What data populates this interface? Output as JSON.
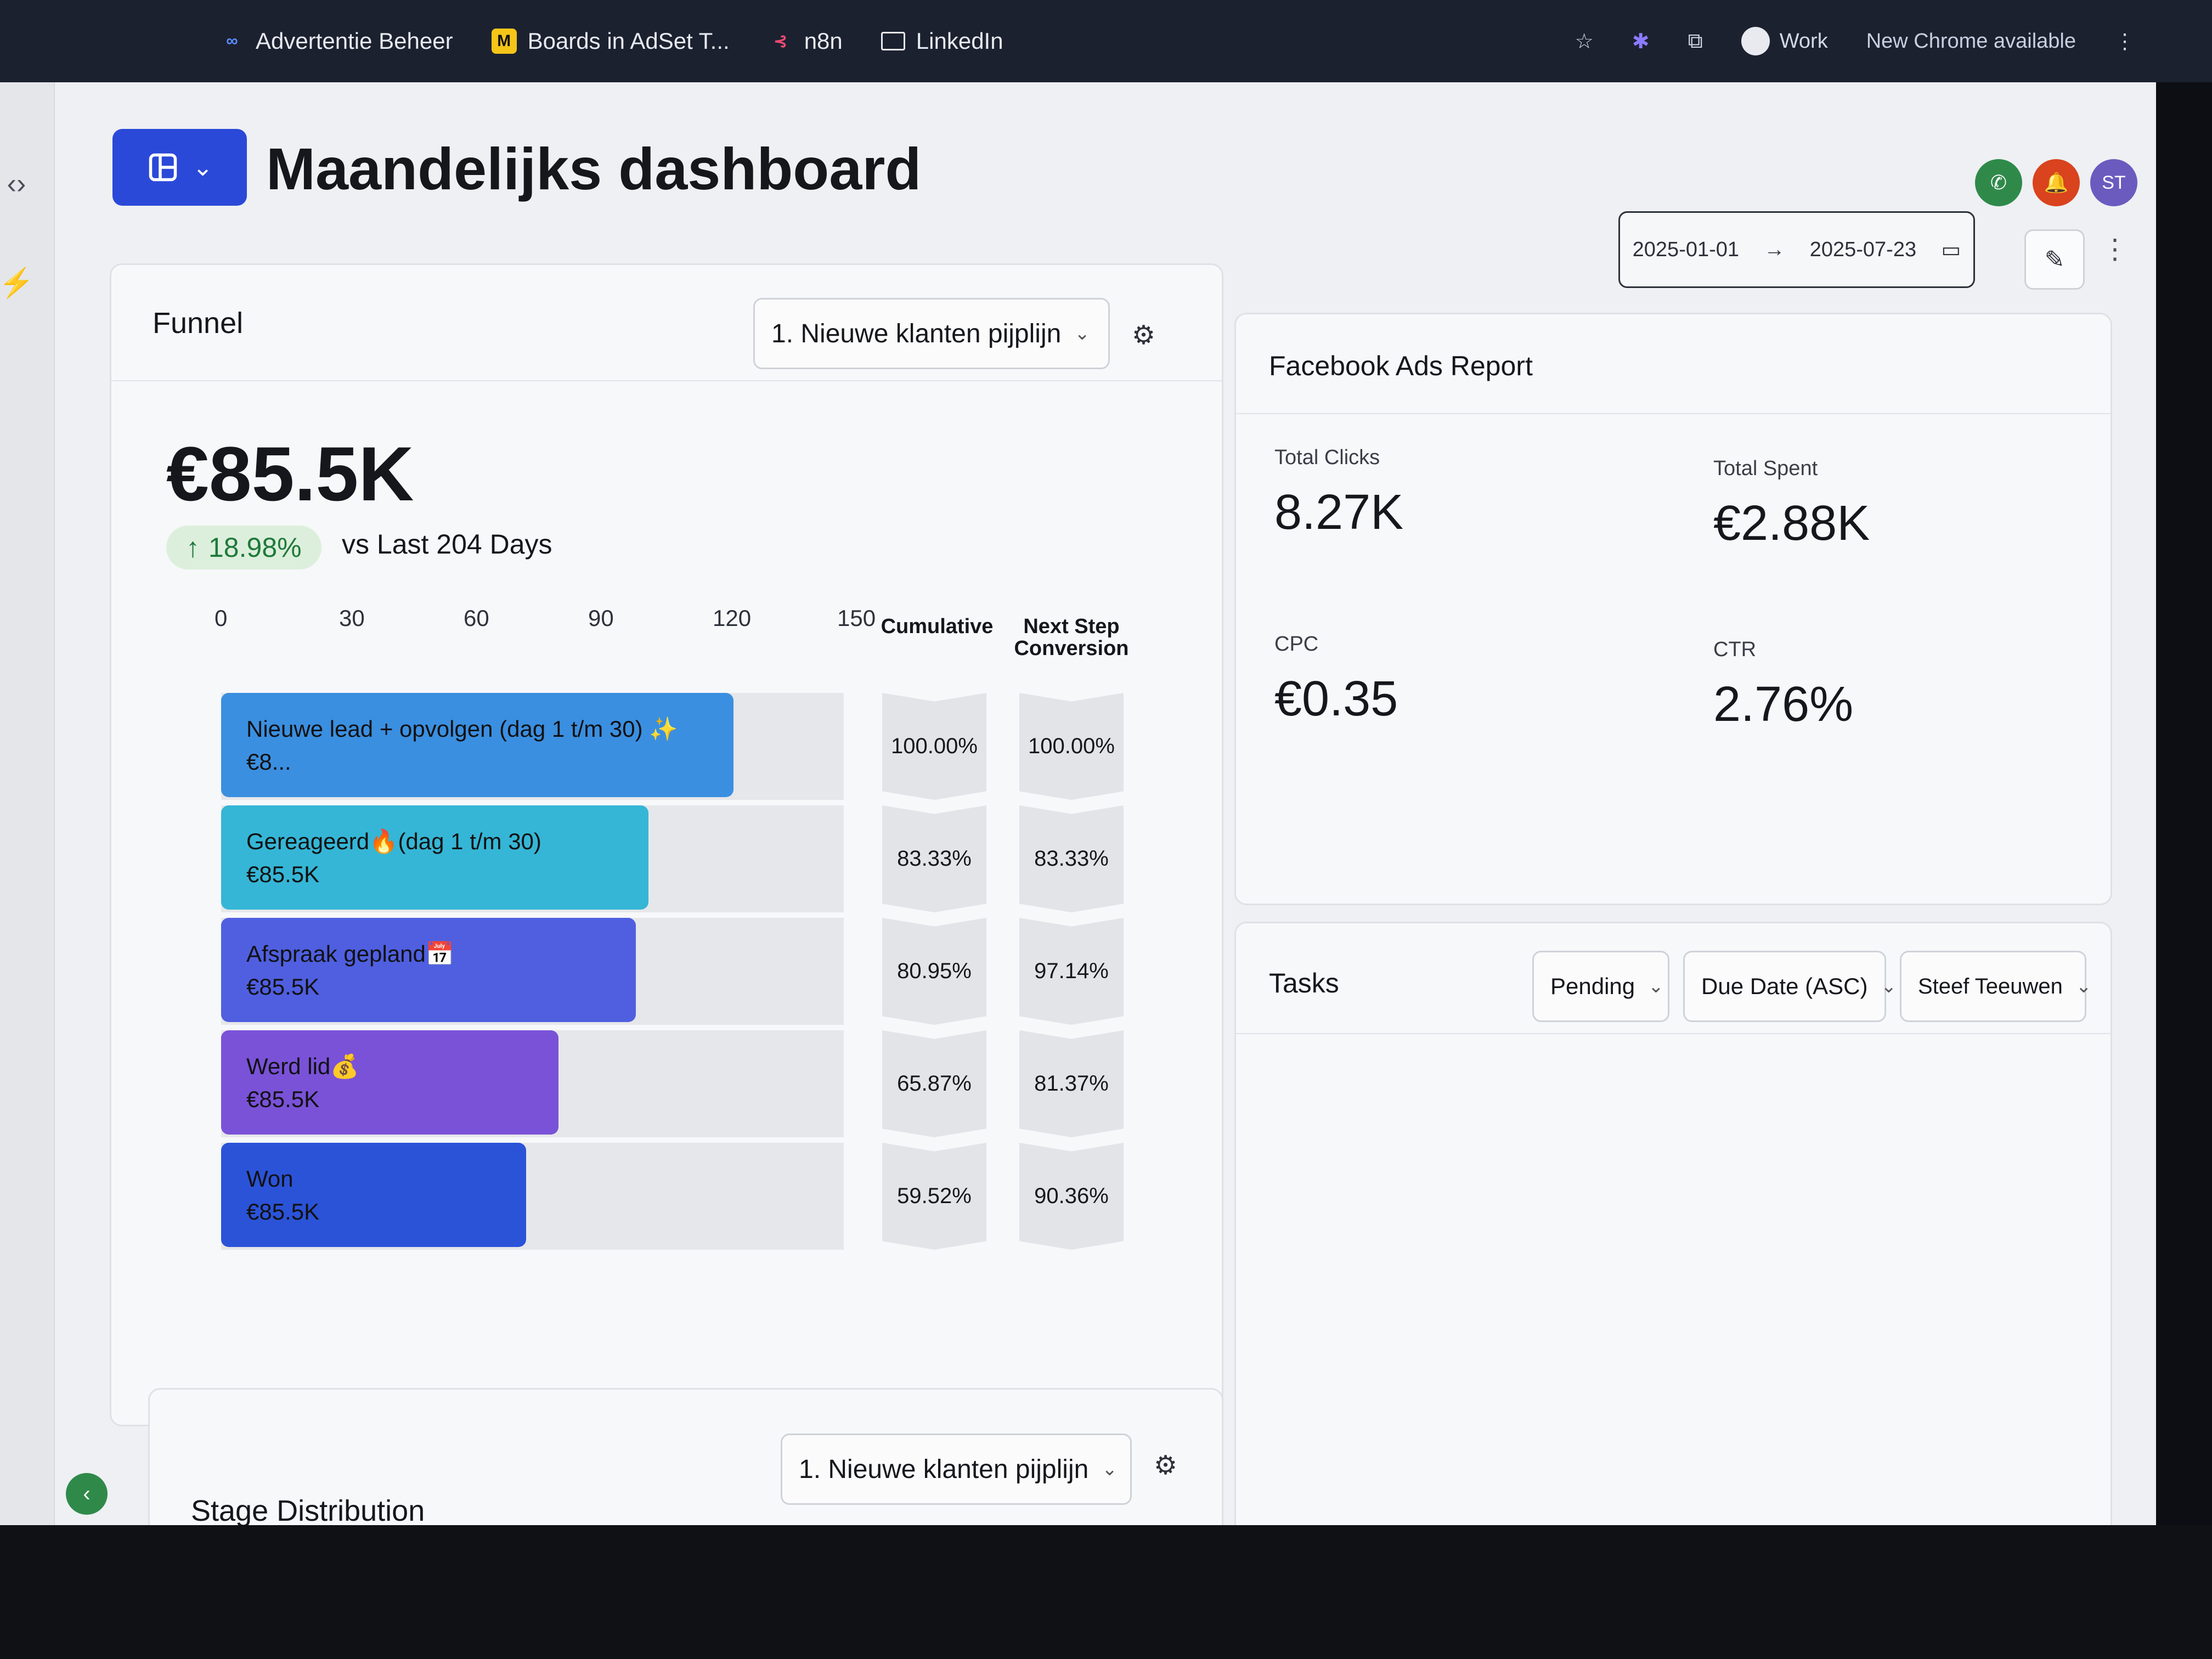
{
  "bookmarks": [
    {
      "label": "Advertentie Beheer",
      "icon": "meta-icon",
      "color": "#3b82f6"
    },
    {
      "label": "Boards in AdSet T...",
      "icon": "miro-icon",
      "color": "#f5c518"
    },
    {
      "label": "n8n",
      "icon": "n8n-icon",
      "color": "#ea4b71"
    },
    {
      "label": "LinkedIn",
      "icon": "folder-icon",
      "color": "#e8eaf0"
    }
  ],
  "browser": {
    "profile_label": "Work",
    "update_label": "New Chrome available"
  },
  "header": {
    "title": "Maandelijks dashboard",
    "date_start": "2025-01-01",
    "date_arrow": "→",
    "date_end": "2025-07-23",
    "avatar_initials": "ST"
  },
  "funnel": {
    "title": "Funnel",
    "pipeline_select": "1. Nieuwe klanten pijplijn",
    "total_value": "€85.5K",
    "change_pct": "18.98%",
    "change_label": "vs Last 204 Days",
    "axis_ticks": [
      "0",
      "30",
      "60",
      "90",
      "120",
      "150"
    ],
    "cumulative_header": "Cumulative",
    "next_step_header": "Next Step Conversion",
    "stages": [
      {
        "name": "Nieuwe lead + opvolgen (dag 1 t/m 30) ✨",
        "value": "€8...",
        "count": 126,
        "cumulative": "100.00%",
        "next_step": "100.00%",
        "color": "#3b8fe0"
      },
      {
        "name": "Gereageerd🔥(dag 1 t/m 30)",
        "value": "€85.5K",
        "count": 105,
        "cumulative": "83.33%",
        "next_step": "83.33%",
        "color": "#35b6d6"
      },
      {
        "name": "Afspraak gepland📅",
        "value": "€85.5K",
        "count": 102,
        "cumulative": "80.95%",
        "next_step": "97.14%",
        "color": "#4f5fe0"
      },
      {
        "name": "Werd lid💰",
        "value": "€85.5K",
        "count": 83,
        "cumulative": "65.87%",
        "next_step": "81.37%",
        "color": "#7a52d8"
      },
      {
        "name": "Won",
        "value": "€85.5K",
        "count": 75,
        "cumulative": "59.52%",
        "next_step": "90.36%",
        "color": "#2b53d8"
      }
    ]
  },
  "facebook": {
    "title": "Facebook Ads Report",
    "stats": [
      {
        "label": "Total Clicks",
        "value": "8.27K"
      },
      {
        "label": "Total Spent",
        "value": "€2.88K"
      },
      {
        "label": "CPC",
        "value": "€0.35"
      },
      {
        "label": "CTR",
        "value": "2.76%"
      }
    ]
  },
  "tasks": {
    "title": "Tasks",
    "status_filter": "Pending",
    "sort_filter": "Due Date (ASC)",
    "user_filter": "Steef Teeuwen"
  },
  "stage_distribution": {
    "title": "Stage Distribution",
    "pipeline_select": "1. Nieuwe klanten pijplijn"
  }
}
